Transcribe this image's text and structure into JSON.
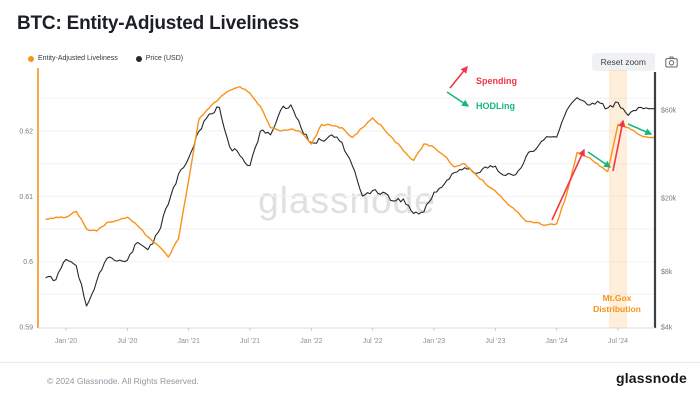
{
  "header": {
    "title": "BTC: Entity-Adjusted Liveliness"
  },
  "toolbar": {
    "reset_zoom_label": "Reset zoom"
  },
  "legend": [
    {
      "label": "Entity-Adjusted Liveliness",
      "color": "#f7931a"
    },
    {
      "label": "Price (USD)",
      "color": "#24292e"
    }
  ],
  "watermark": {
    "text": "glassnode"
  },
  "annotations": {
    "spending": {
      "label": "Spending",
      "color": "#f23645"
    },
    "hodling": {
      "label": "HODLing",
      "color": "#16b87e"
    },
    "mtgox": {
      "line1": "Mt.Gox",
      "line2": "Distribution",
      "color": "#f7931a"
    }
  },
  "footer": {
    "copyright": "© 2024 Glassnode. All Rights Reserved.",
    "logo_text": "glassnode"
  },
  "chart_data": {
    "type": "line",
    "title": "BTC: Entity-Adjusted Liveliness",
    "grid": true,
    "legend_position": "top-left",
    "x_ticks": [
      "Jan '20",
      "Jul '20",
      "Jan '21",
      "Jul '21",
      "Jan '22",
      "Jul '22",
      "Jan '23",
      "Jul '23",
      "Jan '24",
      "Jul '24"
    ],
    "axes": {
      "left": {
        "label": "Entity-Adjusted Liveliness",
        "scale": "linear",
        "range": [
          0.59,
          0.6295
        ],
        "tick_values": [
          0.59,
          0.6,
          0.61,
          0.62
        ],
        "tick_labels": [
          "0.59",
          "0.6",
          "0.61",
          "0.62"
        ],
        "axis_color": "#f7931a",
        "grid_step": 0.005
      },
      "right": {
        "label": "Price (USD)",
        "scale": "log",
        "range": [
          4000,
          90000
        ],
        "tick_values": [
          4000,
          8000,
          20000,
          60000
        ],
        "tick_labels": [
          "$4k",
          "$8k",
          "$20k",
          "$60k"
        ],
        "axis_color": "#3b3f44"
      }
    },
    "months": [
      "2019-11",
      "2019-12",
      "2020-01",
      "2020-02",
      "2020-03",
      "2020-04",
      "2020-05",
      "2020-06",
      "2020-07",
      "2020-08",
      "2020-09",
      "2020-10",
      "2020-11",
      "2020-12",
      "2021-01",
      "2021-02",
      "2021-03",
      "2021-04",
      "2021-05",
      "2021-06",
      "2021-07",
      "2021-08",
      "2021-09",
      "2021-10",
      "2021-11",
      "2021-12",
      "2022-01",
      "2022-02",
      "2022-03",
      "2022-04",
      "2022-05",
      "2022-06",
      "2022-07",
      "2022-08",
      "2022-09",
      "2022-10",
      "2022-11",
      "2022-12",
      "2023-01",
      "2023-02",
      "2023-03",
      "2023-04",
      "2023-05",
      "2023-06",
      "2023-07",
      "2023-08",
      "2023-09",
      "2023-10",
      "2023-11",
      "2023-12",
      "2024-01",
      "2024-02",
      "2024-03",
      "2024-04",
      "2024-05",
      "2024-06",
      "2024-07",
      "2024-08",
      "2024-09",
      "2024-10"
    ],
    "series": [
      {
        "name": "Entity-Adjusted Liveliness",
        "axis": "left",
        "color": "#f7931a",
        "values": [
          0.6065,
          0.6068,
          0.6068,
          0.6077,
          0.605,
          0.6047,
          0.606,
          0.6063,
          0.6068,
          0.6055,
          0.6038,
          0.6025,
          0.6007,
          0.6035,
          0.6125,
          0.6218,
          0.6235,
          0.625,
          0.6262,
          0.6268,
          0.6258,
          0.6238,
          0.6205,
          0.62,
          0.6203,
          0.6198,
          0.618,
          0.621,
          0.6208,
          0.6205,
          0.619,
          0.6205,
          0.622,
          0.6205,
          0.6188,
          0.617,
          0.6155,
          0.618,
          0.6175,
          0.6162,
          0.6145,
          0.615,
          0.6135,
          0.612,
          0.6108,
          0.6092,
          0.6078,
          0.6062,
          0.606,
          0.6056,
          0.6058,
          0.6105,
          0.6167,
          0.616,
          0.615,
          0.6138,
          0.621,
          0.6205,
          0.6195,
          0.619
        ]
      },
      {
        "name": "Price (USD)",
        "axis": "right",
        "color": "#24292e",
        "values": [
          7400,
          7200,
          9300,
          8600,
          5200,
          7100,
          9400,
          9100,
          9200,
          11500,
          10500,
          13000,
          18500,
          27000,
          33000,
          46000,
          57000,
          62000,
          38000,
          34000,
          30000,
          46000,
          44000,
          60000,
          64000,
          48000,
          40000,
          41000,
          44000,
          40000,
          30000,
          20500,
          22000,
          21500,
          19300,
          19800,
          16500,
          16800,
          21500,
          23800,
          27500,
          29200,
          27200,
          29500,
          29800,
          26500,
          26800,
          33500,
          37000,
          43000,
          42800,
          60000,
          70000,
          64000,
          67000,
          61500,
          66000,
          56000,
          62000,
          61000
        ]
      }
    ],
    "highlight_band": {
      "label": "Mt.Gox Distribution",
      "month": "2024-07",
      "color": "#f7931a",
      "opacity": 0.16
    },
    "grid_color": "#f2f2f2",
    "bottom_axis_color": "#d9d9d9"
  }
}
